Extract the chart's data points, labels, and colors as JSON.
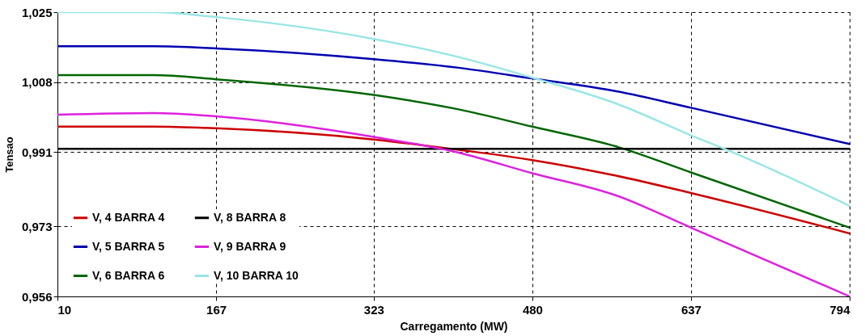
{
  "chart_data": {
    "type": "line",
    "xlabel": "Carregamento (MW)",
    "ylabel": "Tensao",
    "x": [
      10,
      105,
      167,
      323,
      407,
      480,
      563,
      637,
      794
    ],
    "series": [
      {
        "name": "V, 4 BARRA 4",
        "color": "#cc0000",
        "values": [
          0.9972,
          0.9972,
          0.9968,
          0.9941,
          0.9916,
          0.9891,
          0.9853,
          0.9811,
          0.9713
        ]
      },
      {
        "name": "V, 5 BARRA 5",
        "color": "#0000b0",
        "values": [
          1.0167,
          1.0167,
          1.0162,
          1.0136,
          1.0115,
          1.0089,
          1.0058,
          1.0018,
          0.993
        ]
      },
      {
        "name": "V, 6 BARRA 6",
        "color": "#006600",
        "values": [
          1.0097,
          1.0097,
          1.0087,
          1.0049,
          1.0014,
          0.9972,
          0.9924,
          0.9861,
          0.9727
        ]
      },
      {
        "name": "V, 8 BARRA 8",
        "color": "#000000",
        "values": [
          0.9918,
          0.9918,
          0.9918,
          0.9918,
          0.9918,
          0.9918,
          0.9918,
          0.9918,
          0.9918
        ]
      },
      {
        "name": "V, 9 BARRA 9",
        "color": "#dd22dd",
        "values": [
          1.0001,
          1.0005,
          0.9997,
          0.9947,
          0.9909,
          0.9859,
          0.9805,
          0.9727,
          0.956
        ]
      },
      {
        "name": "V, 10 BARRA 10",
        "color": "#99e6e6",
        "x": [
          10,
          105,
          167,
          323,
          407,
          480,
          563,
          637,
          678,
          794
        ],
        "values": [
          1.025,
          1.025,
          1.0238,
          1.0185,
          1.0141,
          1.0091,
          1.0028,
          0.9951,
          0.991,
          0.978
        ]
      }
    ],
    "xlim": [
      10,
      794
    ],
    "xticks": [
      10,
      167,
      323,
      480,
      637,
      794
    ],
    "ylim": [
      0.956,
      1.025
    ],
    "yticks": [
      {
        "value": 0.956,
        "label": "0,956"
      },
      {
        "value": 0.973,
        "label": "0,973"
      },
      {
        "value": 0.991,
        "label": "0,991"
      },
      {
        "value": 1.008,
        "label": "1,008"
      },
      {
        "value": 1.025,
        "label": "1,025"
      }
    ],
    "grid": true,
    "legend": "bottom left",
    "marker": "none",
    "line_style": "solid"
  }
}
